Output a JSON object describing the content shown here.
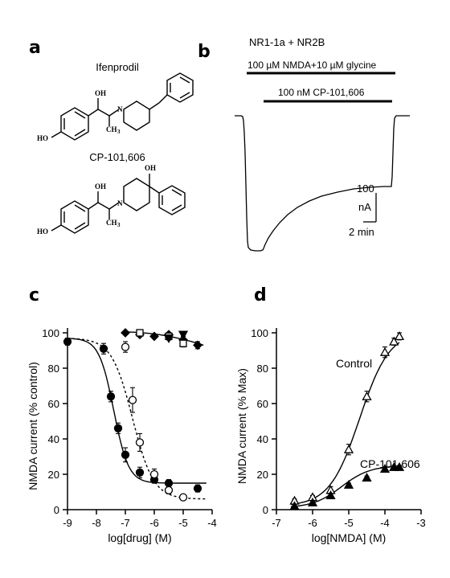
{
  "panels": {
    "a": {
      "letter": "a",
      "compound1_name": "Ifenprodil",
      "compound2_name": "CP-101,606",
      "atoms": {
        "oh": "OH",
        "ho": "HO",
        "n": "N",
        "ch3": "CH",
        "sub3": "3"
      }
    },
    "b": {
      "letter": "b",
      "title": "NR1-1a + NR2B",
      "bar1_label": "100 µM NMDA+10 µM glycine",
      "bar2_label": "100 nM CP-101,606",
      "scale_current": "100",
      "scale_unit": "nA",
      "scale_time": "2 min"
    },
    "c": {
      "letter": "c"
    },
    "d": {
      "letter": "d"
    }
  },
  "chart_data": [
    {
      "id": "c",
      "type": "scatter",
      "xlabel": "log[drug] (M)",
      "ylabel": "NMDA current (% control)",
      "xlim": [
        -9,
        -4
      ],
      "ylim": [
        0,
        100
      ],
      "xticks": [
        -9,
        -8,
        -7,
        -6,
        -5,
        -4
      ],
      "yticks": [
        0,
        20,
        40,
        60,
        80,
        100
      ],
      "series": [
        {
          "marker": "filled-circle",
          "fit": "solid",
          "x": [
            -9,
            -7.75,
            -7.5,
            -7.25,
            -7,
            -6.5,
            -6,
            -5.5,
            -4.5
          ],
          "y": [
            95,
            91,
            64,
            46,
            31,
            21,
            17,
            15,
            12
          ],
          "err": [
            2,
            3,
            3,
            3,
            4,
            3,
            2,
            2,
            2
          ]
        },
        {
          "marker": "open-circle",
          "fit": "dashed",
          "x": [
            -7,
            -6.75,
            -6.5,
            -6,
            -5.5,
            -5
          ],
          "y": [
            92,
            62,
            38,
            20,
            11,
            7
          ],
          "err": [
            3,
            7,
            5,
            3,
            2,
            1
          ]
        },
        {
          "marker": "filled-diamond",
          "fit": "solid",
          "x": [
            -7,
            -6.5,
            -6,
            -5.5,
            -5,
            -4.5
          ],
          "y": [
            100,
            99,
            98,
            99,
            96,
            93
          ],
          "err": [
            1,
            1,
            1,
            1,
            2,
            2
          ]
        },
        {
          "marker": "open-square",
          "fit": "none",
          "x": [
            -6.5,
            -5.5,
            -5
          ],
          "y": [
            100,
            98,
            94
          ],
          "err": [
            1,
            2,
            2
          ]
        },
        {
          "marker": "filled-triangle-down",
          "fit": "none",
          "x": [
            -5,
            -5.5
          ],
          "y": [
            99,
            97
          ],
          "err": [
            1,
            1
          ]
        }
      ]
    },
    {
      "id": "d",
      "type": "scatter",
      "xlabel": "log[NMDA] (M)",
      "ylabel": "NMDA current (% Max)",
      "xlim": [
        -7,
        -3
      ],
      "ylim": [
        0,
        100
      ],
      "xticks": [
        -7,
        -6,
        -5,
        -4,
        -3
      ],
      "yticks": [
        0,
        20,
        40,
        60,
        80,
        100
      ],
      "annotations": [
        "Control",
        "CP-101,606"
      ],
      "series": [
        {
          "name": "Control",
          "marker": "open-triangle",
          "fit": "solid",
          "x": [
            -6.5,
            -6,
            -5.5,
            -5,
            -4.5,
            -4,
            -3.75,
            -3.6
          ],
          "y": [
            5,
            7,
            11,
            34,
            64,
            89,
            95,
            98
          ],
          "err": [
            1,
            1,
            2,
            3,
            3,
            3,
            2,
            2
          ]
        },
        {
          "name": "CP-101,606",
          "marker": "filled-triangle",
          "fit": "solid",
          "x": [
            -6.5,
            -6,
            -5.5,
            -5,
            -4.5,
            -4,
            -3.75,
            -3.6
          ],
          "y": [
            2,
            4,
            8,
            14,
            18,
            23,
            24,
            24
          ],
          "err": [
            1,
            1,
            1,
            1,
            1,
            1,
            1,
            1
          ]
        }
      ]
    }
  ]
}
